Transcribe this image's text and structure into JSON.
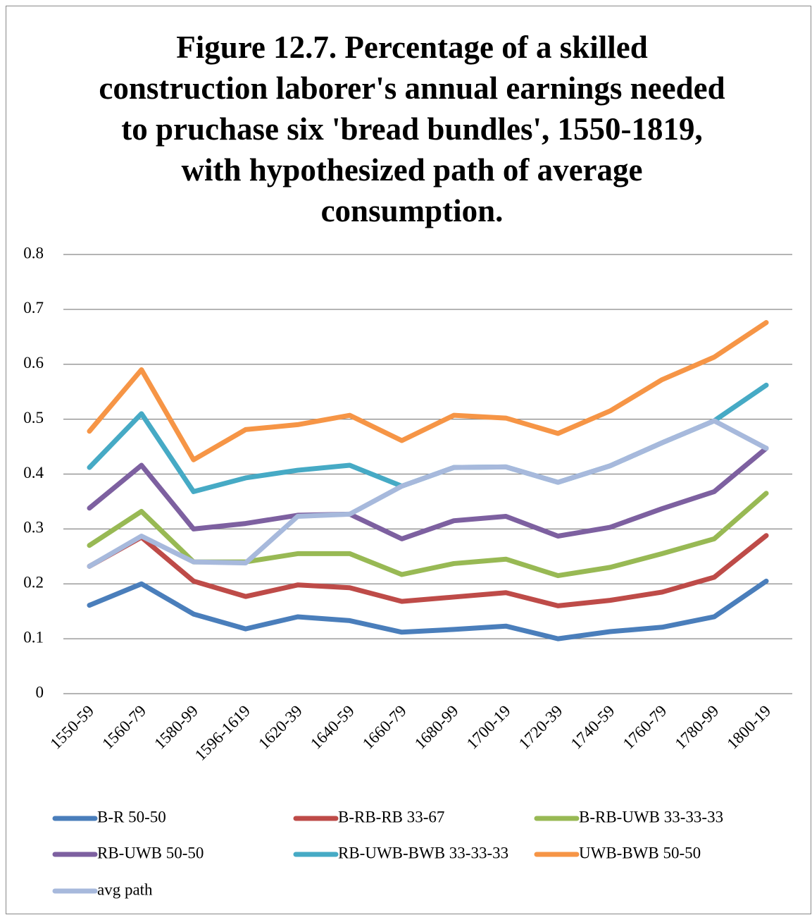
{
  "chart_data": {
    "type": "line",
    "title": "Figure 12.7. Percentage of a skilled construction laborer's annual earnings needed to pruchase six 'bread bundles', 1550-1819, with hypothesized path of average consumption.",
    "categories": [
      "1550-59",
      "1560-79",
      "1580-99",
      "1596-1619",
      "1620-39",
      "1640-59",
      "1660-79",
      "1680-99",
      "1700-19",
      "1720-39",
      "1740-59",
      "1760-79",
      "1780-99",
      "1800-19"
    ],
    "series": [
      {
        "name": "B-R 50-50",
        "color": "#4a7ebb",
        "values": [
          0.161,
          0.2,
          0.145,
          0.118,
          0.14,
          0.133,
          0.112,
          0.117,
          0.123,
          0.1,
          0.113,
          0.121,
          0.14,
          0.205
        ]
      },
      {
        "name": "B-RB-RB 33-67",
        "color": "#be4b48",
        "values": [
          0.232,
          0.285,
          0.205,
          0.177,
          0.198,
          0.193,
          0.168,
          0.176,
          0.184,
          0.16,
          0.17,
          0.185,
          0.212,
          0.288
        ]
      },
      {
        "name": "B-RB-UWB 33-33-33",
        "color": "#98b954",
        "values": [
          0.27,
          0.332,
          0.24,
          0.24,
          0.255,
          0.255,
          0.217,
          0.237,
          0.245,
          0.215,
          0.23,
          0.255,
          0.282,
          0.365
        ]
      },
      {
        "name": "RB-UWB 50-50",
        "color": "#7d60a0",
        "values": [
          0.338,
          0.416,
          0.3,
          0.31,
          0.325,
          0.327,
          0.282,
          0.315,
          0.323,
          0.287,
          0.303,
          0.337,
          0.368,
          0.447
        ]
      },
      {
        "name": "RB-UWB-BWB 33-33-33",
        "color": "#46aac5",
        "values": [
          0.412,
          0.51,
          0.368,
          0.393,
          0.407,
          0.416,
          0.378,
          0.412,
          0.413,
          0.385,
          0.415,
          0.457,
          0.497,
          0.562
        ]
      },
      {
        "name": "UWB-BWB 50-50",
        "color": "#f69546",
        "values": [
          0.478,
          0.59,
          0.426,
          0.481,
          0.49,
          0.507,
          0.461,
          0.507,
          0.502,
          0.474,
          0.515,
          0.572,
          0.613,
          0.676
        ]
      },
      {
        "name": "avg path",
        "color": "#a7b9dc",
        "values": [
          0.232,
          0.287,
          0.24,
          0.238,
          0.323,
          0.327,
          0.378,
          0.412,
          0.413,
          0.385,
          0.415,
          0.457,
          0.497,
          0.447
        ]
      }
    ],
    "ylim": [
      0,
      0.8
    ],
    "yticks": [
      0,
      0.1,
      0.2,
      0.3,
      0.4,
      0.5,
      0.6,
      0.7,
      0.8
    ],
    "grid": true,
    "legend": "bottom"
  }
}
